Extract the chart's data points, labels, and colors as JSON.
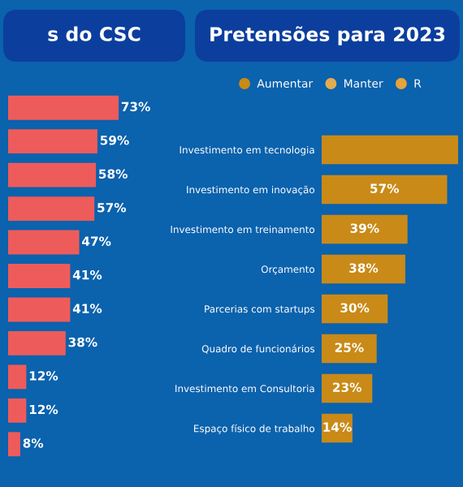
{
  "chart_data": [
    {
      "type": "bar",
      "orientation": "horizontal",
      "title": "s do CSC",
      "categories": [
        null,
        null,
        null,
        null,
        null,
        null,
        null,
        null,
        null,
        null,
        null
      ],
      "values": [
        73,
        59,
        58,
        57,
        47,
        41,
        41,
        38,
        12,
        12,
        8
      ],
      "color": "#ee5b5b",
      "value_labels": [
        "73%",
        "59%",
        "58%",
        "57%",
        "47%",
        "41%",
        "41%",
        "38%",
        "12%",
        "12%",
        "8%"
      ]
    },
    {
      "type": "bar",
      "orientation": "horizontal",
      "stacked": true,
      "title": "Pretensões para 2023",
      "categories": [
        "Investimento em tecnologia",
        "Investimento em inovação",
        "Investimento em treinamento",
        "Orçamento",
        "Parcerias com startups",
        "Quadro de funcionários",
        "Investimento em Consultoria",
        "Espaço físico de trabalho"
      ],
      "series": [
        {
          "name": "Aumentar",
          "color": "#c98a17",
          "values": [
            62,
            57,
            39,
            38,
            30,
            25,
            23,
            14
          ],
          "value_labels": [
            null,
            "57%",
            "39%",
            "38%",
            "30%",
            "25%",
            "23%",
            "14%"
          ]
        },
        {
          "name": "Manter",
          "color": "#e2ac50",
          "values": [
            null,
            null,
            null,
            null,
            null,
            null,
            null,
            null
          ]
        },
        {
          "name": "R",
          "color": "#e8a33a",
          "values": [
            null,
            null,
            null,
            null,
            null,
            null,
            null,
            null
          ]
        }
      ],
      "legend": "top"
    }
  ]
}
